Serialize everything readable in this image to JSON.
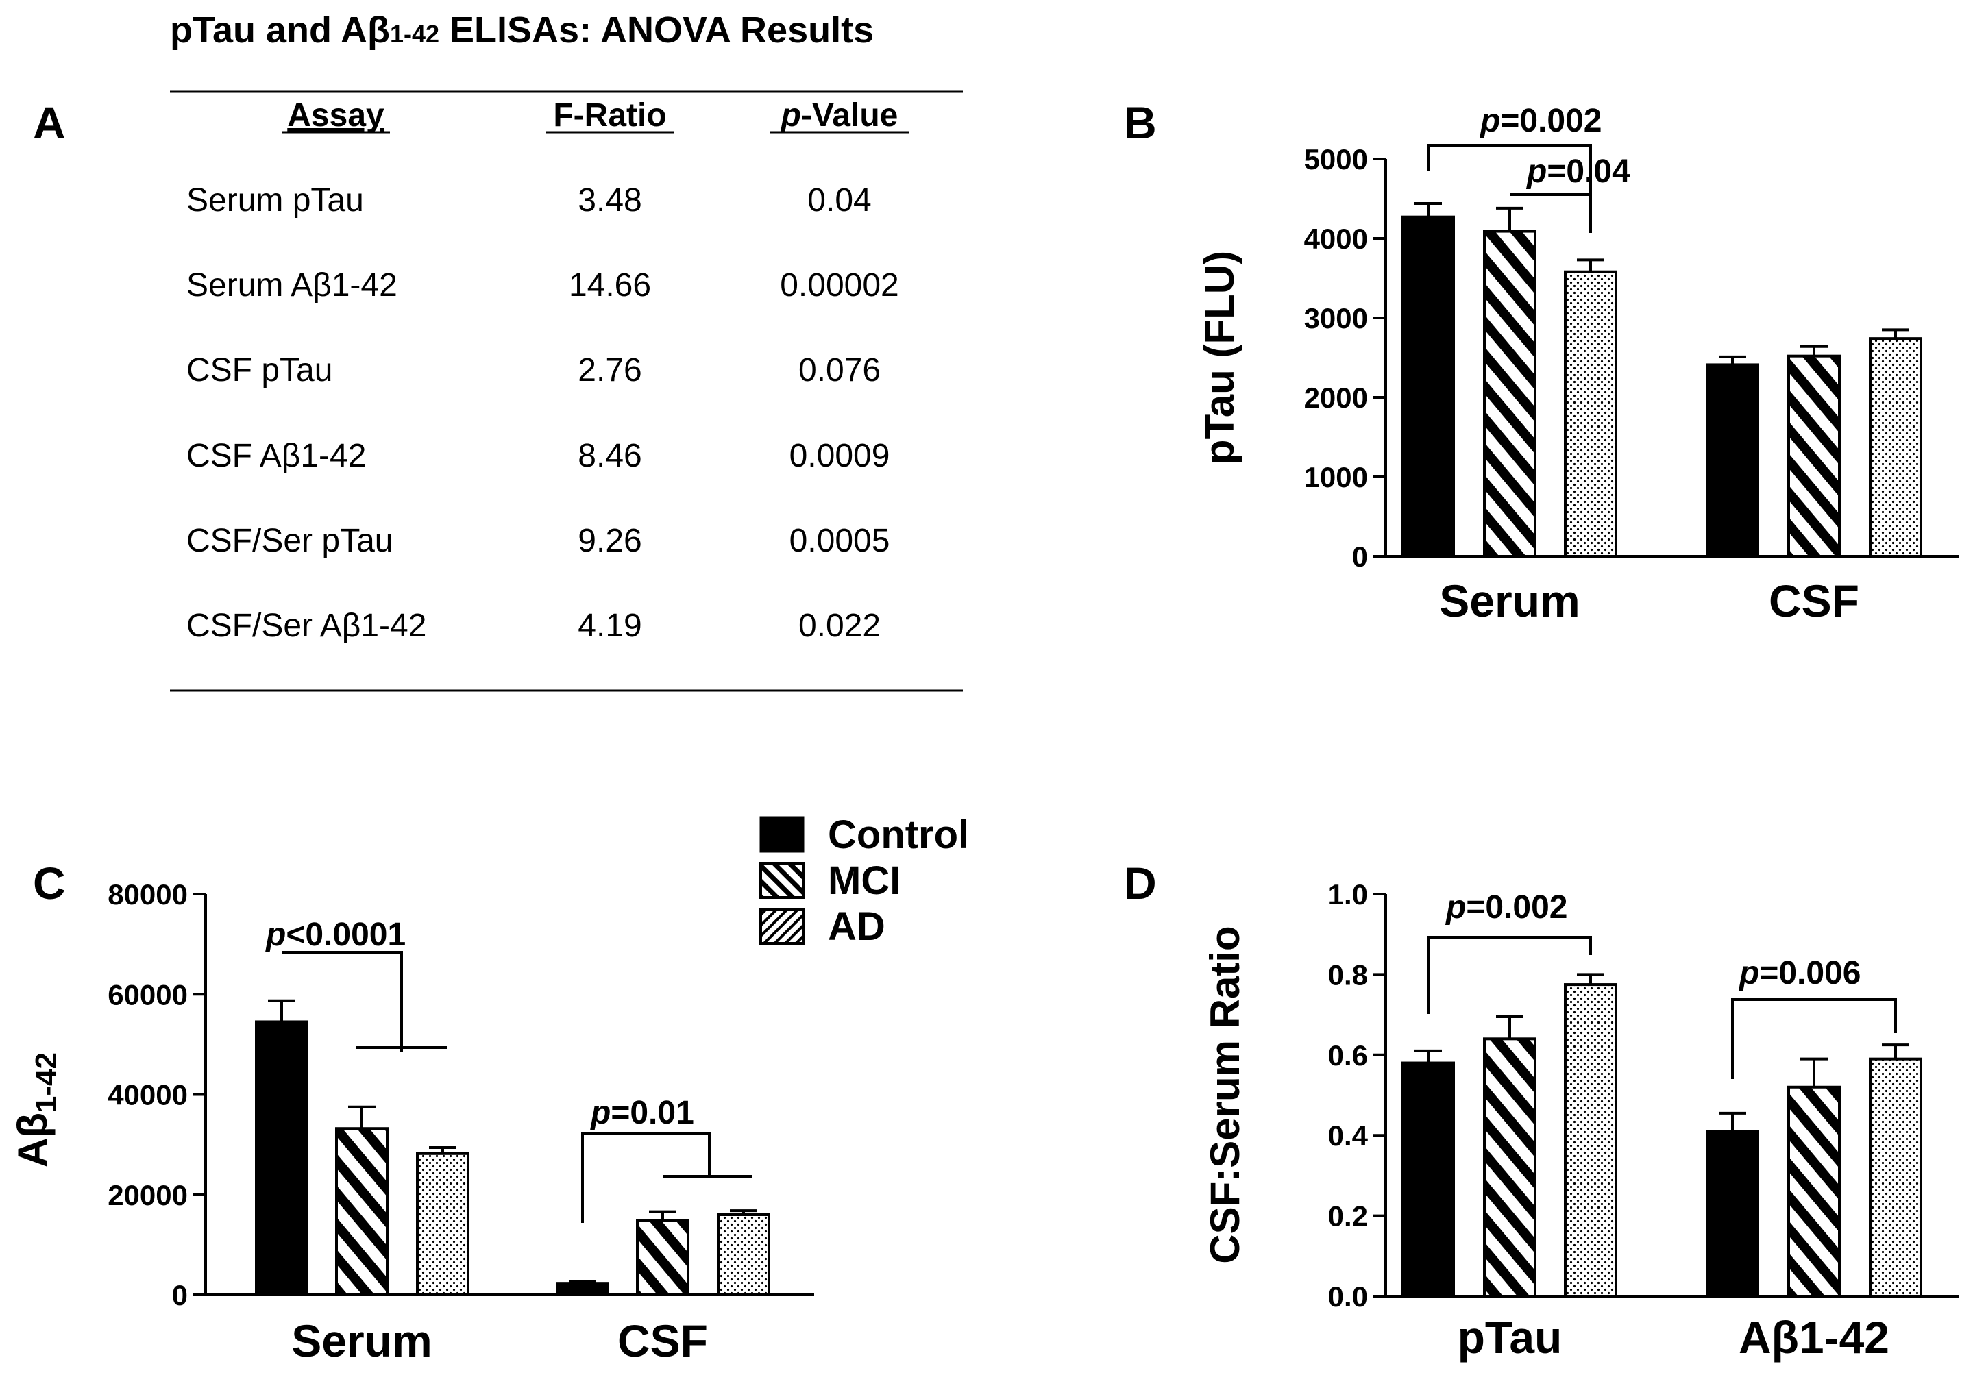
{
  "figure_title": {
    "main": "pTau and Aβ",
    "sub": "1-42",
    "rest": " ELISAs: ANOVA Results"
  },
  "panels": {
    "a": "A",
    "b": "B",
    "c": "C",
    "d": "D"
  },
  "anova_table": {
    "headers": {
      "assay": "Assay",
      "f_ratio": "F-Ratio",
      "p_italic": "p",
      "p_rest": "-Value"
    },
    "rows": [
      {
        "assay": "Serum pTau",
        "f": "3.48",
        "p": "0.04"
      },
      {
        "assay": "Serum Aβ1-42",
        "f": "14.66",
        "p": "0.00002"
      },
      {
        "assay": "CSF pTau",
        "f": "2.76",
        "p": "0.076"
      },
      {
        "assay": "CSF Aβ1-42",
        "f": "8.46",
        "p": "0.0009"
      },
      {
        "assay": "CSF/Ser pTau",
        "f": "9.26",
        "p": "0.0005"
      },
      {
        "assay": "CSF/Ser Aβ1-42",
        "f": "4.19",
        "p": "0.022"
      }
    ]
  },
  "legend": [
    {
      "label": "Control",
      "pattern": "solid"
    },
    {
      "label": "MCI",
      "pattern": "diag-right"
    },
    {
      "label": "AD",
      "pattern": "diag-left"
    }
  ],
  "colors": {
    "ink": "#000000",
    "background": "#ffffff"
  },
  "chart_data": [
    {
      "id": "B",
      "type": "bar",
      "categories": [
        "Serum",
        "CSF"
      ],
      "ylabel": "pTau (FLU)",
      "ylim": [
        0,
        5000
      ],
      "yticks": [
        "0",
        "1000",
        "2000",
        "3000",
        "4000",
        "5000"
      ],
      "series": [
        {
          "name": "Control",
          "values": [
            4270,
            2410
          ],
          "errors": [
            170,
            100
          ]
        },
        {
          "name": "MCI",
          "values": [
            4090,
            2520
          ],
          "errors": [
            290,
            120
          ]
        },
        {
          "name": "AD",
          "values": [
            3580,
            2740
          ],
          "errors": [
            150,
            110
          ]
        }
      ],
      "annotations": [
        {
          "p_italic": "p",
          "text": "=0.002"
        },
        {
          "p_italic": "p",
          "text": "=0.04"
        }
      ]
    },
    {
      "id": "C",
      "type": "bar",
      "categories": [
        "Serum",
        "CSF"
      ],
      "ylabel": {
        "main": "Aβ",
        "sub": "1-42"
      },
      "ylim": [
        0,
        80000
      ],
      "yticks": [
        "0",
        "20000",
        "40000",
        "60000",
        "80000"
      ],
      "series": [
        {
          "name": "Control",
          "values": [
            54500,
            2300
          ],
          "errors": [
            4200,
            400
          ]
        },
        {
          "name": "MCI",
          "values": [
            33200,
            14800
          ],
          "errors": [
            4300,
            1800
          ]
        },
        {
          "name": "AD",
          "values": [
            28200,
            16000
          ],
          "errors": [
            1200,
            800
          ]
        }
      ],
      "annotations": [
        {
          "p_italic": "p",
          "text": "<0.0001"
        },
        {
          "p_italic": "p",
          "text": "=0.01"
        }
      ]
    },
    {
      "id": "D",
      "type": "bar",
      "categories": [
        "pTau",
        "Aβ1-42"
      ],
      "ylabel": "CSF:Serum  Ratio",
      "ylim": [
        0,
        1.0
      ],
      "yticks": [
        "0.0",
        "0.2",
        "0.4",
        "0.6",
        "0.8",
        "1.0"
      ],
      "series": [
        {
          "name": "Control",
          "values": [
            0.58,
            0.41
          ],
          "errors": [
            0.03,
            0.045
          ]
        },
        {
          "name": "MCI",
          "values": [
            0.64,
            0.52
          ],
          "errors": [
            0.055,
            0.07
          ]
        },
        {
          "name": "AD",
          "values": [
            0.775,
            0.59
          ],
          "errors": [
            0.025,
            0.035
          ]
        }
      ],
      "annotations": [
        {
          "p_italic": "p",
          "text": "=0.002"
        },
        {
          "p_italic": "p",
          "text": "=0.006"
        }
      ]
    }
  ]
}
